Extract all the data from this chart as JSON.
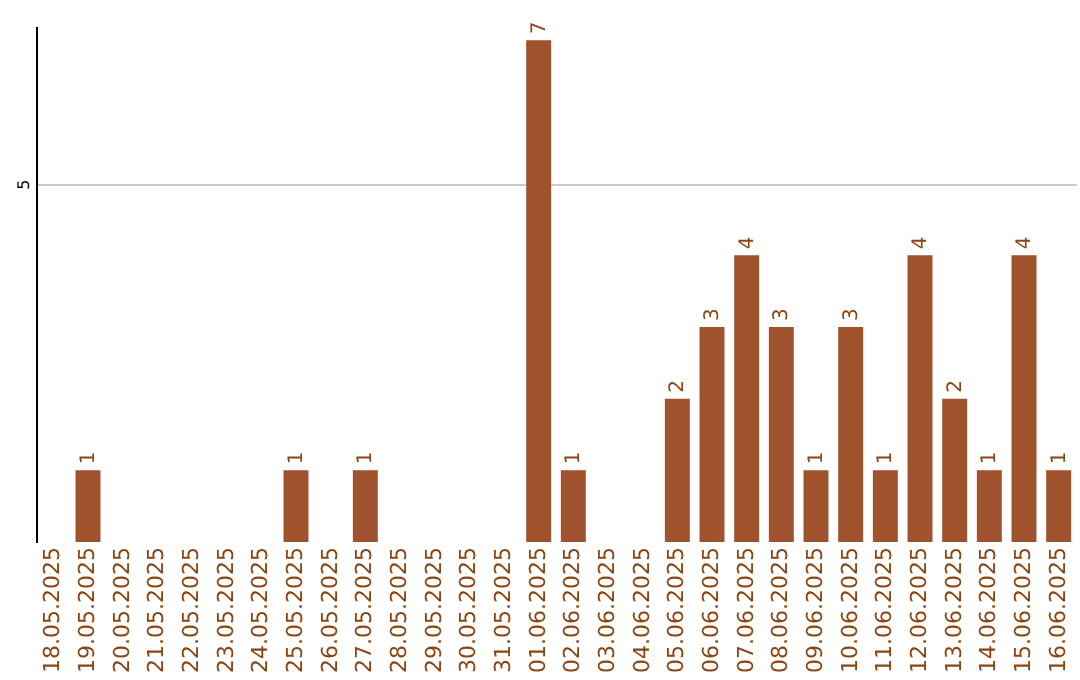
{
  "chart_data": {
    "type": "bar",
    "categories": [
      "18.05.2025",
      "19.05.2025",
      "20.05.2025",
      "21.05.2025",
      "22.05.2025",
      "23.05.2025",
      "24.05.2025",
      "25.05.2025",
      "26.05.2025",
      "27.05.2025",
      "28.05.2025",
      "29.05.2025",
      "30.05.2025",
      "31.05.2025",
      "01.06.2025",
      "02.06.2025",
      "03.06.2025",
      "04.06.2025",
      "05.06.2025",
      "06.06.2025",
      "07.06.2025",
      "08.06.2025",
      "09.06.2025",
      "10.06.2025",
      "11.06.2025",
      "12.06.2025",
      "13.06.2025",
      "14.06.2025",
      "15.06.2025",
      "16.06.2025"
    ],
    "values": [
      0,
      1,
      0,
      0,
      0,
      0,
      0,
      1,
      0,
      1,
      0,
      0,
      0,
      0,
      7,
      1,
      0,
      0,
      2,
      3,
      4,
      3,
      1,
      3,
      1,
      4,
      2,
      1,
      4,
      1
    ],
    "value_labels": [
      null,
      "1",
      null,
      null,
      null,
      null,
      null,
      "1",
      null,
      "1",
      null,
      null,
      null,
      null,
      "7",
      "1",
      null,
      null,
      "2",
      "3",
      "4",
      "3",
      "1",
      "3",
      "1",
      "4",
      "2",
      "1",
      "4",
      "1"
    ],
    "color": "#a0522d",
    "ylim": [
      0,
      7.2
    ],
    "yticks": [
      5
    ],
    "grid": "y"
  }
}
